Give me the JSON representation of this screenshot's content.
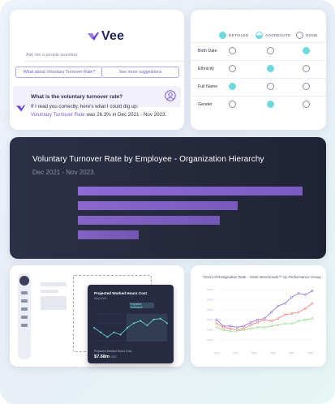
{
  "chat": {
    "logo_text": "Vee",
    "ask_placeholder": "Ask me a people question.",
    "suggestion_1": "What about Voluntary Turnover Rate?",
    "suggestion_2": "See more suggestions",
    "question": "What is the voluntary turnover rate?",
    "answer_pre": "If I read you correctly, here's what I could dig up:",
    "answer_link": "Voluntary Turnover Rate",
    "answer_post": " was 26.3% in Dec 2021 - Nov 2023."
  },
  "matrix": {
    "headers": [
      "DETAILED",
      "AGGREGATE",
      "NONE"
    ],
    "rows": [
      {
        "label": "Birth Date",
        "selected": "NONE"
      },
      {
        "label": "Ethnicity",
        "selected": "AGGREGATE"
      },
      {
        "label": "Full Name",
        "selected": "DETAILED"
      },
      {
        "label": "Gender",
        "selected": "AGGREGATE"
      }
    ],
    "accent": "#6fd8dc"
  },
  "bar_chart": {
    "title": "Voluntary Turnover Rate by Employee - Organization Hierarchy",
    "subtitle": "Dec 2021 - Nov 2023."
  },
  "chart_data": [
    {
      "type": "bar",
      "orientation": "horizontal",
      "title": "Voluntary Turnover Rate by Employee - Organization Hierarchy",
      "subtitle": "Dec 2021 - Nov 2023.",
      "categories": [
        "",
        "",
        "",
        ""
      ],
      "values": [
        100,
        71,
        63,
        27
      ],
      "color": "#8e6ad4"
    },
    {
      "type": "line",
      "title": "Projected Worked Hours Cost",
      "subtitle": "Hey 2024",
      "annotation": "Projected Timeframe",
      "series": [
        {
          "values": [
            5,
            4,
            3,
            4,
            3.5,
            5,
            6,
            6.5,
            5.5,
            6.8,
            7,
            6
          ]
        }
      ],
      "footer_label": "Projected Worked Hours Cost",
      "footer_value": "$7.68m",
      "footer_unit": "USD"
    },
    {
      "type": "line",
      "title": "Trend of Resignation Rate - Visier Benchmark™ by Performance Group",
      "series": [
        {
          "color": "#8e6ad4",
          "values": [
            16,
            11,
            11,
            10,
            11,
            14,
            16,
            17,
            22,
            27,
            29,
            34,
            37,
            36,
            39
          ]
        },
        {
          "color": "#f07d74",
          "values": [
            13,
            10,
            9,
            8,
            9,
            12,
            14,
            16,
            15,
            17,
            20,
            21,
            22,
            25,
            29
          ]
        },
        {
          "color": "#9bd68f",
          "values": [
            10,
            8,
            7,
            7,
            8,
            9,
            10,
            10,
            11,
            12,
            13,
            13,
            15,
            16,
            17
          ]
        }
      ]
    }
  ]
}
